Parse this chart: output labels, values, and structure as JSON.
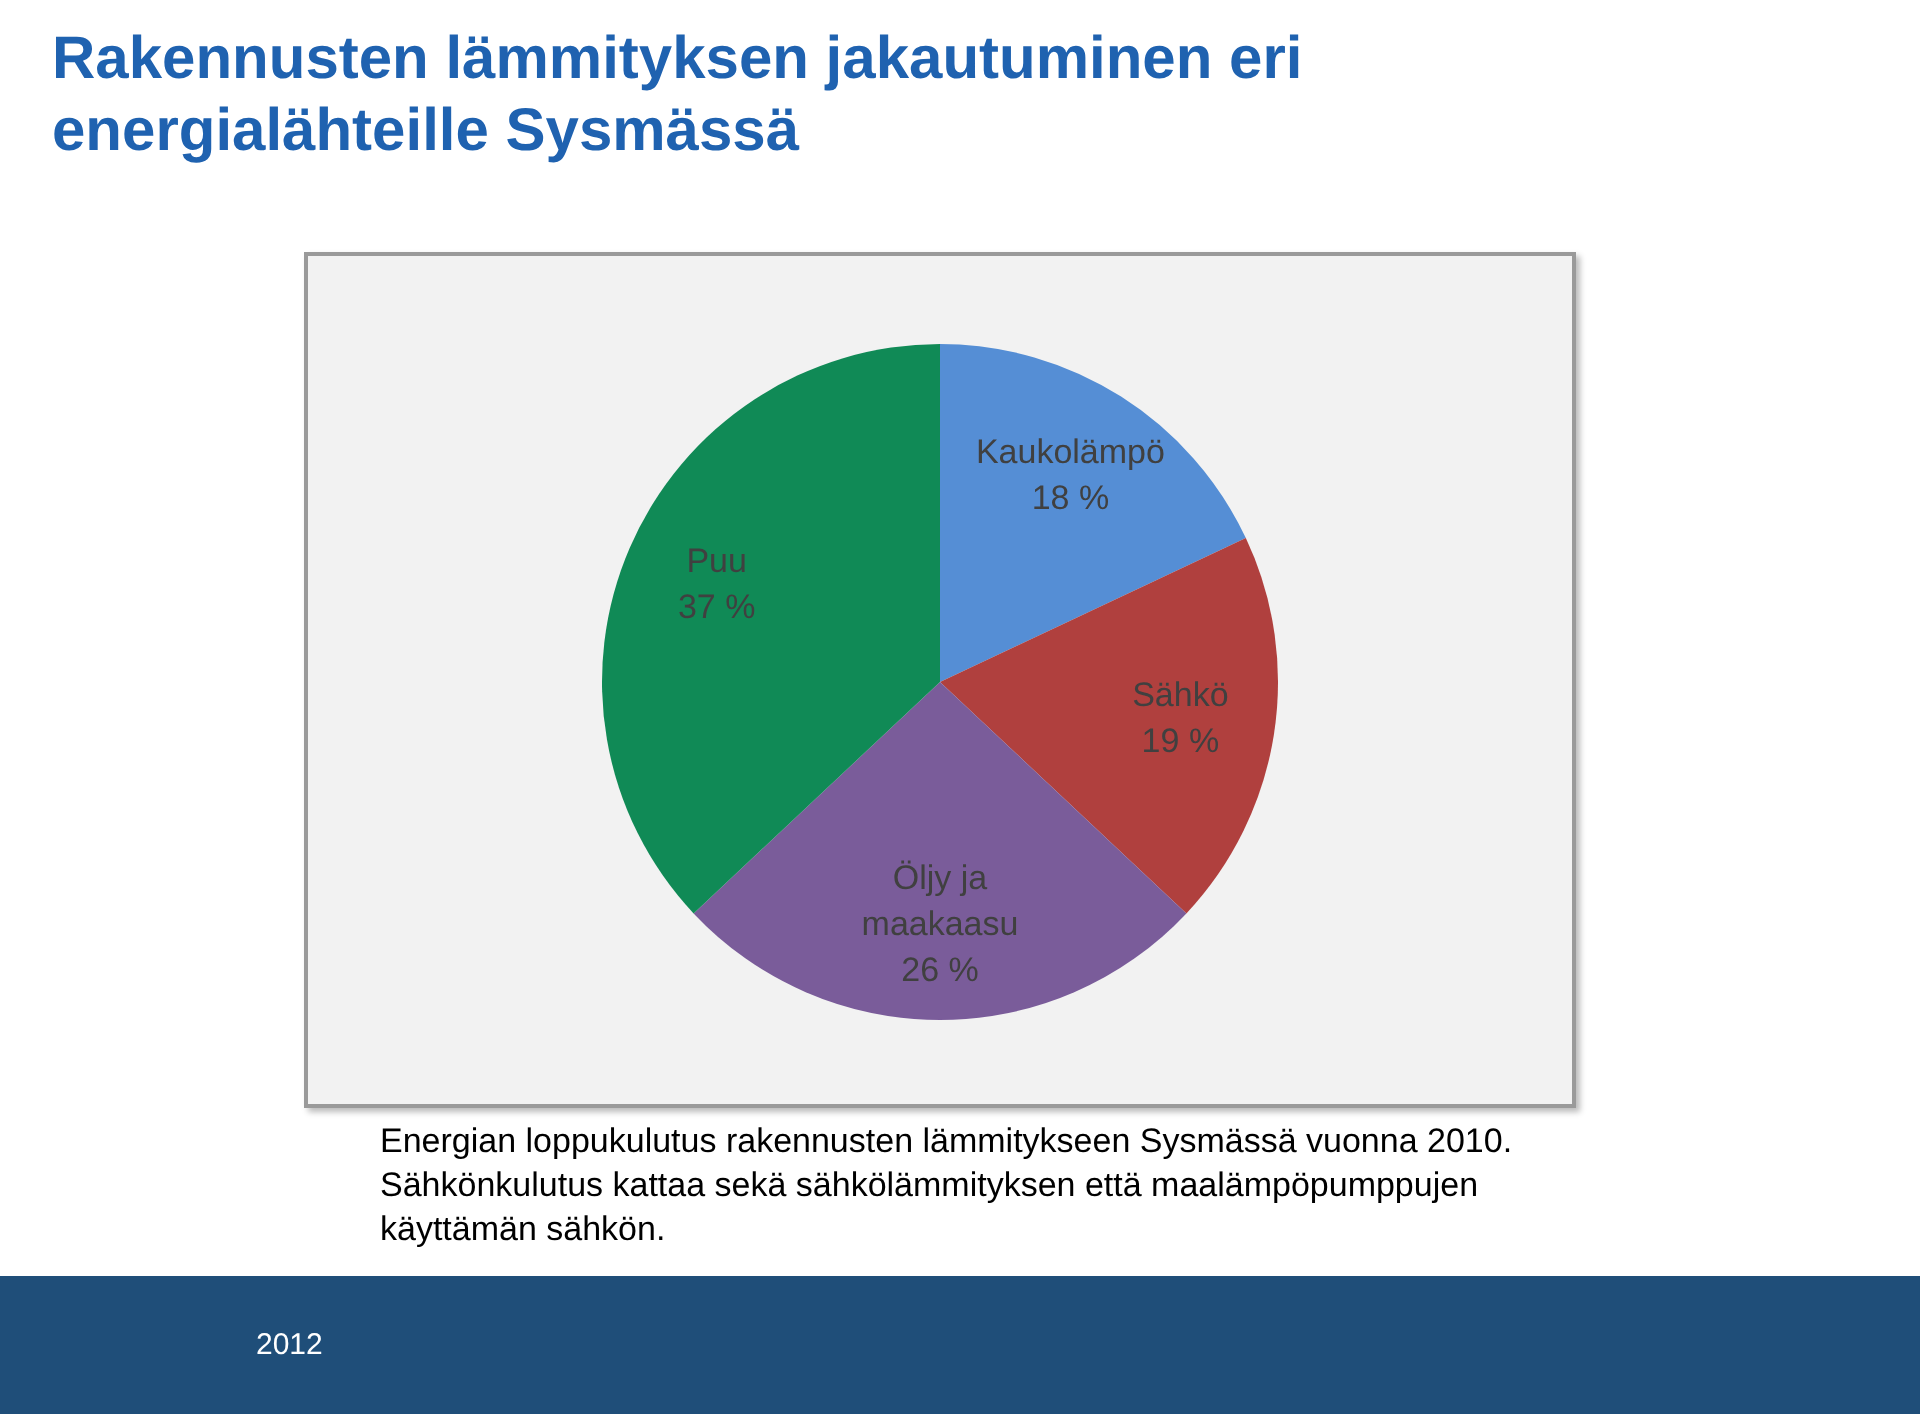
{
  "chart_data": {
    "type": "pie",
    "title": "Rakennusten lämmityksen jakautuminen eri energialähteille Sysmässä",
    "categories": [
      "Kaukolämpö",
      "Sähkö",
      "Öljy ja maakaasu",
      "Puu"
    ],
    "values": [
      18,
      19,
      26,
      37
    ],
    "value_labels": [
      "18 %",
      "19 %",
      "26 %",
      "37 %"
    ],
    "colors": [
      "#558ed5",
      "#b0403e",
      "#7a5c9a",
      "#108a56"
    ],
    "legend": false,
    "annotations": [
      "Energian loppukulutus rakennusten lämmitykseen Sysmässä vuonna 2010. Sähkönkulutus kattaa sekä sähkölämmityksen että maalämpöpumppujen käyttämän sähkön.",
      "2012"
    ]
  }
}
